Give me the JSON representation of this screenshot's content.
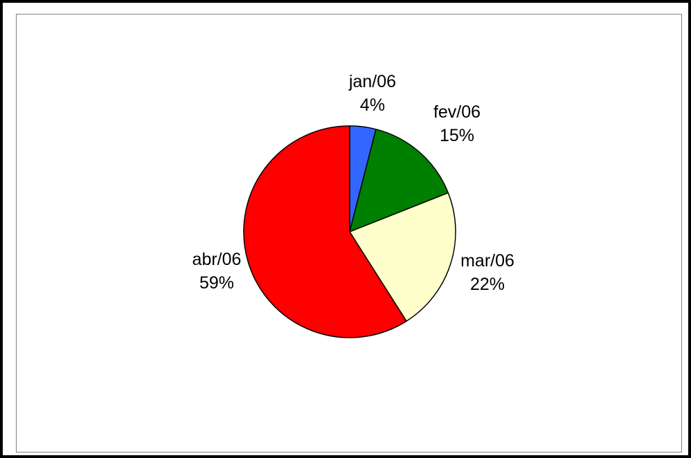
{
  "chart_data": {
    "type": "pie",
    "categories": [
      "jan/06",
      "fev/06",
      "mar/06",
      "abr/06"
    ],
    "values": [
      4,
      15,
      22,
      59
    ],
    "value_labels": [
      "4%",
      "15%",
      "22%",
      "59%"
    ],
    "colors": [
      "#3366ff",
      "#008000",
      "#ffffcc",
      "#ff0000"
    ],
    "start_angle_deg": 0,
    "direction": "clockwise",
    "legend": "none"
  }
}
